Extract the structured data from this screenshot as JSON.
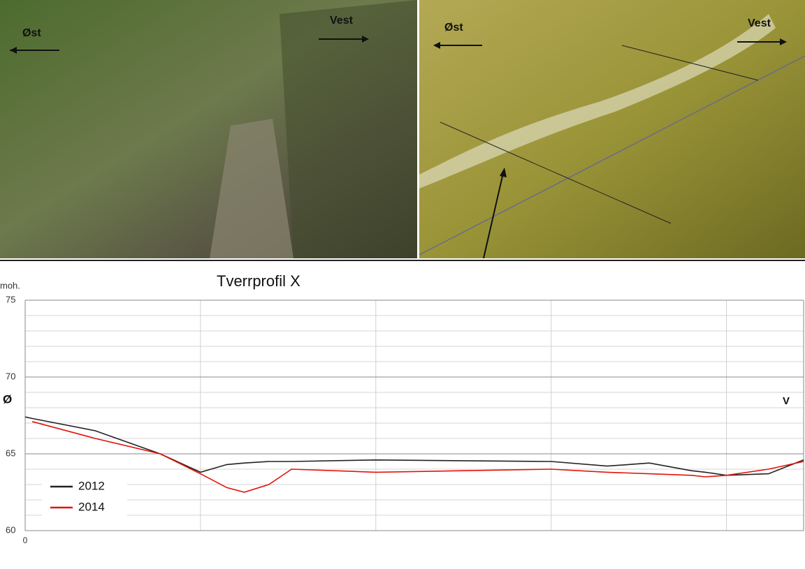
{
  "photos": {
    "left": {
      "east": "Øst",
      "west": "Vest"
    },
    "right": {
      "east": "Øst",
      "west": "Vest"
    }
  },
  "chart_data": {
    "type": "line",
    "title": "Tverrprofil X",
    "ylabel": "moh.",
    "annotations": {
      "left": "Ø",
      "right": "V"
    },
    "x": [
      0,
      0.04,
      0.4,
      0.77,
      1.0,
      1.15,
      1.25,
      1.39,
      1.52,
      2.0,
      3.0,
      3.32,
      3.56,
      3.8,
      3.88,
      4.0,
      4.24,
      4.44
    ],
    "series": [
      {
        "name": "2012",
        "color": "#222222",
        "values": [
          67.4,
          67.3,
          66.5,
          65.0,
          63.8,
          64.3,
          64.4,
          64.5,
          64.5,
          64.6,
          64.5,
          64.2,
          64.4,
          63.9,
          63.8,
          63.6,
          63.7,
          64.6
        ]
      },
      {
        "name": "2014",
        "color": "#e3120b",
        "values": [
          null,
          67.1,
          66.0,
          65.0,
          63.7,
          62.8,
          62.5,
          63.0,
          64.0,
          63.8,
          64.0,
          63.8,
          63.7,
          63.6,
          63.5,
          63.6,
          64.0,
          64.5
        ]
      }
    ],
    "xlim": [
      0,
      4.44
    ],
    "xticks": [
      0
    ],
    "ylim": [
      60,
      75
    ],
    "yticks": [
      60,
      65,
      70,
      75
    ],
    "grid": true,
    "legend": "lower left"
  }
}
